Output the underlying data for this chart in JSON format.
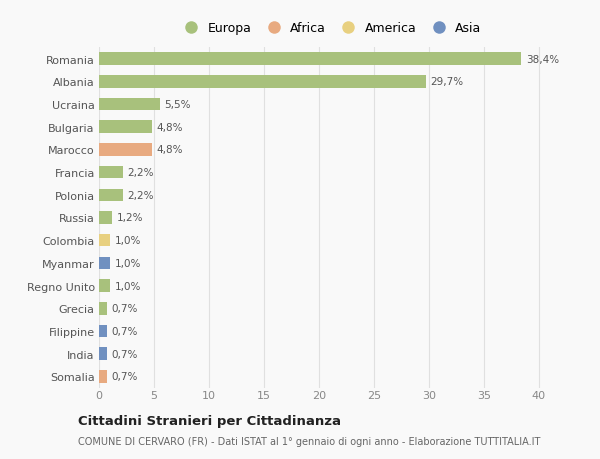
{
  "categories": [
    "Romania",
    "Albania",
    "Ucraina",
    "Bulgaria",
    "Marocco",
    "Francia",
    "Polonia",
    "Russia",
    "Colombia",
    "Myanmar",
    "Regno Unito",
    "Grecia",
    "Filippine",
    "India",
    "Somalia"
  ],
  "values": [
    38.4,
    29.7,
    5.5,
    4.8,
    4.8,
    2.2,
    2.2,
    1.2,
    1.0,
    1.0,
    1.0,
    0.7,
    0.7,
    0.7,
    0.7
  ],
  "labels": [
    "38,4%",
    "29,7%",
    "5,5%",
    "4,8%",
    "4,8%",
    "2,2%",
    "2,2%",
    "1,2%",
    "1,0%",
    "1,0%",
    "1,0%",
    "0,7%",
    "0,7%",
    "0,7%",
    "0,7%"
  ],
  "continents": [
    "Europa",
    "Europa",
    "Europa",
    "Europa",
    "Africa",
    "Europa",
    "Europa",
    "Europa",
    "America",
    "Asia",
    "Europa",
    "Europa",
    "Asia",
    "Asia",
    "Africa"
  ],
  "colors": {
    "Europa": "#a8c17c",
    "Africa": "#e8aa80",
    "America": "#e8d080",
    "Asia": "#7090c0"
  },
  "legend_order": [
    "Europa",
    "Africa",
    "America",
    "Asia"
  ],
  "legend_colors": [
    "#a8c17c",
    "#e8aa80",
    "#e8d080",
    "#7090c0"
  ],
  "title": "Cittadini Stranieri per Cittadinanza",
  "subtitle": "COMUNE DI CERVARO (FR) - Dati ISTAT al 1° gennaio di ogni anno - Elaborazione TUTTITALIA.IT",
  "xlim": [
    0,
    42
  ],
  "xticks": [
    0,
    5,
    10,
    15,
    20,
    25,
    30,
    35,
    40
  ],
  "background_color": "#f9f9f9",
  "grid_color": "#e0e0e0",
  "bar_height": 0.55
}
